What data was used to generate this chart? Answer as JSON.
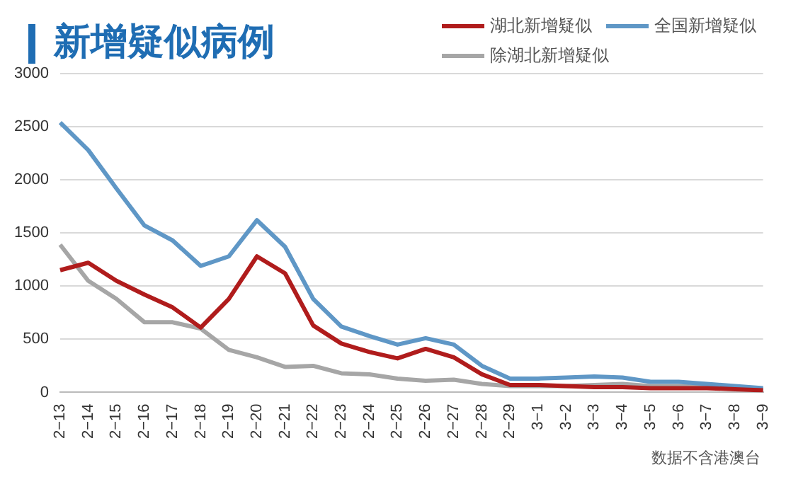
{
  "chart_data": {
    "type": "line",
    "title": "新增疑似病例",
    "categories": [
      "2−13",
      "2−14",
      "2−15",
      "2−16",
      "2−17",
      "2−18",
      "2−19",
      "2−20",
      "2−21",
      "2−22",
      "2−23",
      "2−24",
      "2−25",
      "2−26",
      "2−27",
      "2−28",
      "2−29",
      "3−1",
      "3−2",
      "3−3",
      "3−4",
      "3−5",
      "3−6",
      "3−7",
      "3−8",
      "3−9"
    ],
    "series": [
      {
        "name": "湖北新增疑似",
        "color": "#b01c1c",
        "values": [
          1150,
          1220,
          1050,
          920,
          800,
          610,
          880,
          1280,
          1120,
          630,
          460,
          380,
          320,
          410,
          330,
          170,
          70,
          70,
          60,
          50,
          50,
          40,
          40,
          40,
          30,
          20
        ]
      },
      {
        "name": "全国新增疑似",
        "color": "#5f97c6",
        "values": [
          2540,
          2280,
          1920,
          1570,
          1430,
          1190,
          1280,
          1620,
          1370,
          880,
          620,
          530,
          450,
          510,
          450,
          250,
          130,
          130,
          140,
          150,
          140,
          100,
          100,
          80,
          60,
          40
        ]
      },
      {
        "name": "除湖北新增疑似",
        "color": "#a6a6a6",
        "values": [
          1390,
          1050,
          880,
          660,
          660,
          600,
          400,
          330,
          240,
          250,
          180,
          170,
          130,
          110,
          120,
          80,
          60,
          60,
          60,
          70,
          80,
          60,
          60,
          50,
          40,
          30
        ]
      }
    ],
    "ylim": [
      0,
      3000
    ],
    "yticks": [
      0,
      500,
      1000,
      1500,
      2000,
      2500,
      3000
    ],
    "grid": "y",
    "legend": "top right",
    "marker": "none",
    "line_style": "solid",
    "annotations": [
      "数据不含港澳台"
    ]
  }
}
